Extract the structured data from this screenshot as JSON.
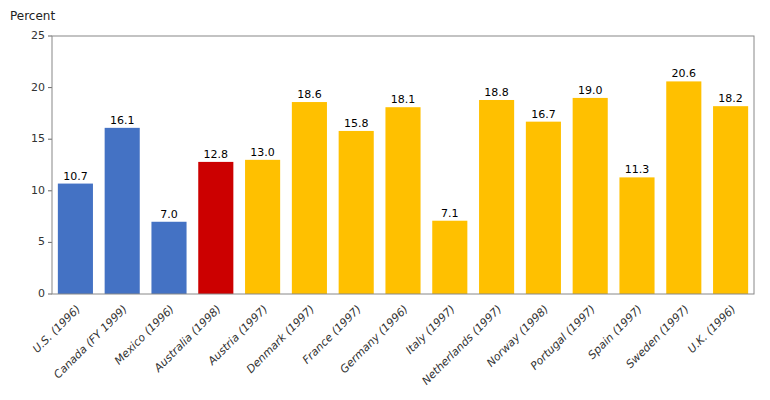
{
  "chart_data": {
    "type": "bar",
    "y_label": "Percent",
    "categories": [
      "U.S. (1996)",
      "Canada (FY 1999)",
      "Mexico (1996)",
      "Australia (1998)",
      "Austria (1997)",
      "Denmark (1997)",
      "France (1997)",
      "Germany (1996)",
      "Italy (1997)",
      "Netherlands (1997)",
      "Norway (1998)",
      "Portugal (1997)",
      "Spain (1997)",
      "Sweden (1997)",
      "U.K. (1996)"
    ],
    "values": [
      10.7,
      16.1,
      7.0,
      12.8,
      13.0,
      18.6,
      15.8,
      18.1,
      7.1,
      18.8,
      16.7,
      19.0,
      11.3,
      20.6,
      18.2
    ],
    "value_labels": [
      "10.7",
      "16.1",
      "7.0",
      "12.8",
      "13.0",
      "18.6",
      "15.8",
      "18.1",
      "7.1",
      "18.8",
      "16.7",
      "19.0",
      "11.3",
      "20.6",
      "18.2"
    ],
    "colors": [
      "#4472C4",
      "#4472C4",
      "#4472C4",
      "#CC0000",
      "#FFC000",
      "#FFC000",
      "#FFC000",
      "#FFC000",
      "#FFC000",
      "#FFC000",
      "#FFC000",
      "#FFC000",
      "#FFC000",
      "#FFC000",
      "#FFC000"
    ],
    "ylim": [
      0,
      25
    ],
    "yticks": [
      0,
      5,
      10,
      15,
      20,
      25
    ],
    "grid": false,
    "data_labels": true
  }
}
